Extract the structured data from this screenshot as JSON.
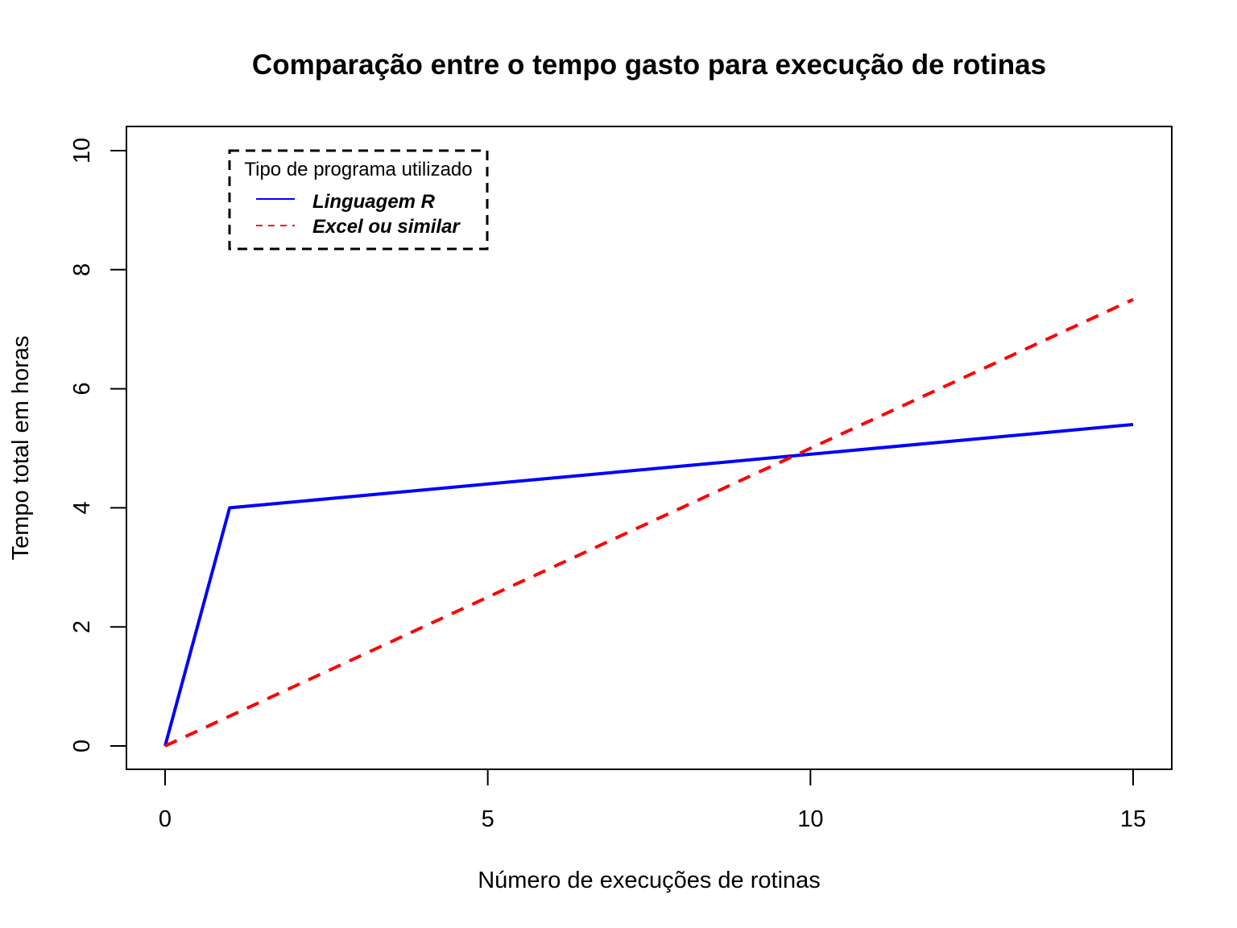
{
  "chart_data": {
    "type": "line",
    "title": "Comparação entre o tempo gasto para execução de rotinas",
    "xlabel": "Número de execuções de rotinas",
    "ylabel": "Tempo total em horas",
    "xlim": [
      0,
      15
    ],
    "ylim": [
      0,
      10
    ],
    "x_ticks": [
      "0",
      "5",
      "10",
      "15"
    ],
    "y_ticks": [
      "0",
      "2",
      "4",
      "6",
      "8",
      "10"
    ],
    "grid": false,
    "legend": {
      "title": "Tipo de programa utilizado",
      "placement": "top-left",
      "border": "dashed"
    },
    "series": [
      {
        "name": "Linguagem R",
        "color": "#0000ff",
        "line_style": "solid",
        "x": [
          0,
          1,
          15
        ],
        "y": [
          0,
          4,
          5.4
        ]
      },
      {
        "name": "Excel ou similar",
        "color": "#ff0000",
        "line_style": "dashed",
        "x": [
          0,
          15
        ],
        "y": [
          0,
          7.5
        ]
      }
    ]
  }
}
